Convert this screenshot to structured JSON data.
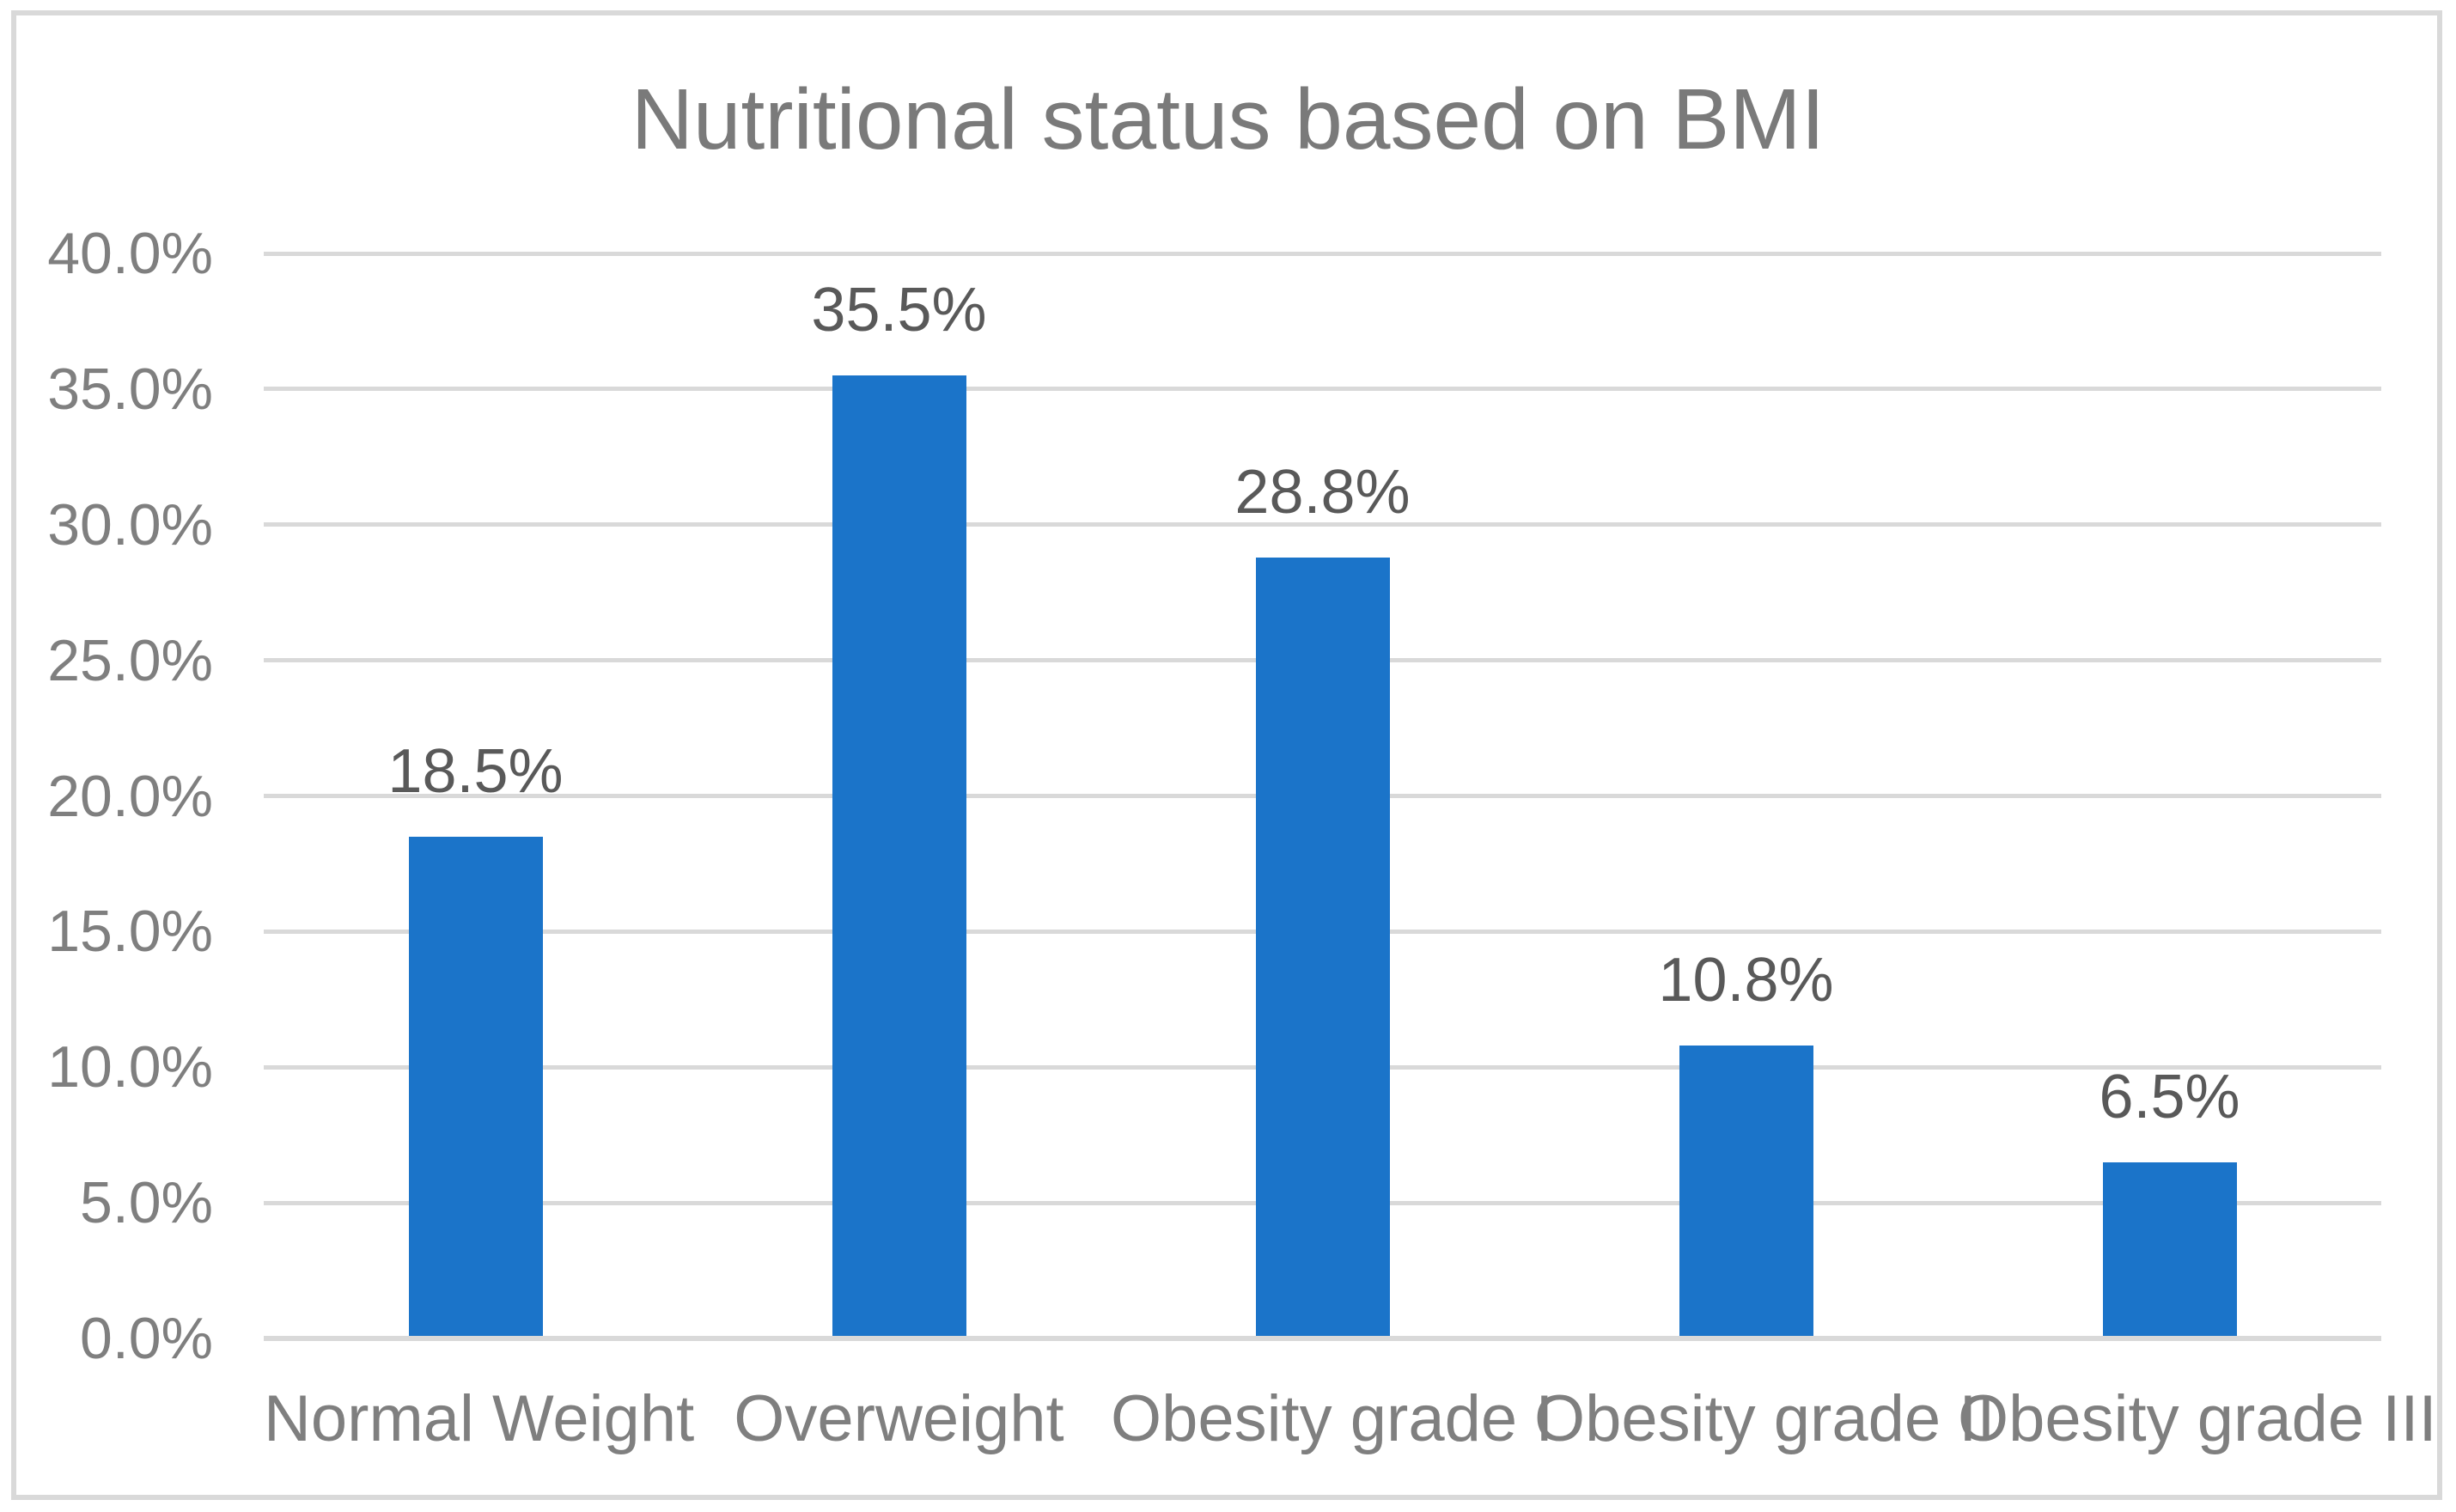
{
  "chart_data": {
    "type": "bar",
    "title": "Nutritional status based on BMI",
    "categories": [
      "Normal Weight",
      "Overweight",
      "Obesity grade I",
      "Obesity grade II",
      "Obesity grade III"
    ],
    "values": [
      18.5,
      35.5,
      28.8,
      10.8,
      6.5
    ],
    "value_labels": [
      "18.5%",
      "35.5%",
      "28.8%",
      "10.8%",
      "6.5%"
    ],
    "xlabel": "",
    "ylabel": "",
    "ylim": [
      0,
      40
    ],
    "y_ticks": [
      {
        "value": 0,
        "label": "0.0%"
      },
      {
        "value": 5,
        "label": "5.0%"
      },
      {
        "value": 10,
        "label": "10.0%"
      },
      {
        "value": 15,
        "label": "15.0%"
      },
      {
        "value": 20,
        "label": "20.0%"
      },
      {
        "value": 25,
        "label": "25.0%"
      },
      {
        "value": 30,
        "label": "30.0%"
      },
      {
        "value": 35,
        "label": "35.0%"
      },
      {
        "value": 40,
        "label": "40.0%"
      }
    ],
    "grid": true,
    "legend": false,
    "colors": {
      "bar": "#1B74C9",
      "gridline": "#D9D9D9",
      "axis_line": "#D9D9D9",
      "border": "#D9D9D9",
      "title": "#7A7A7A",
      "axis_label": "#7F7F7F",
      "data_label": "#595959",
      "background": "#FFFFFF"
    }
  }
}
